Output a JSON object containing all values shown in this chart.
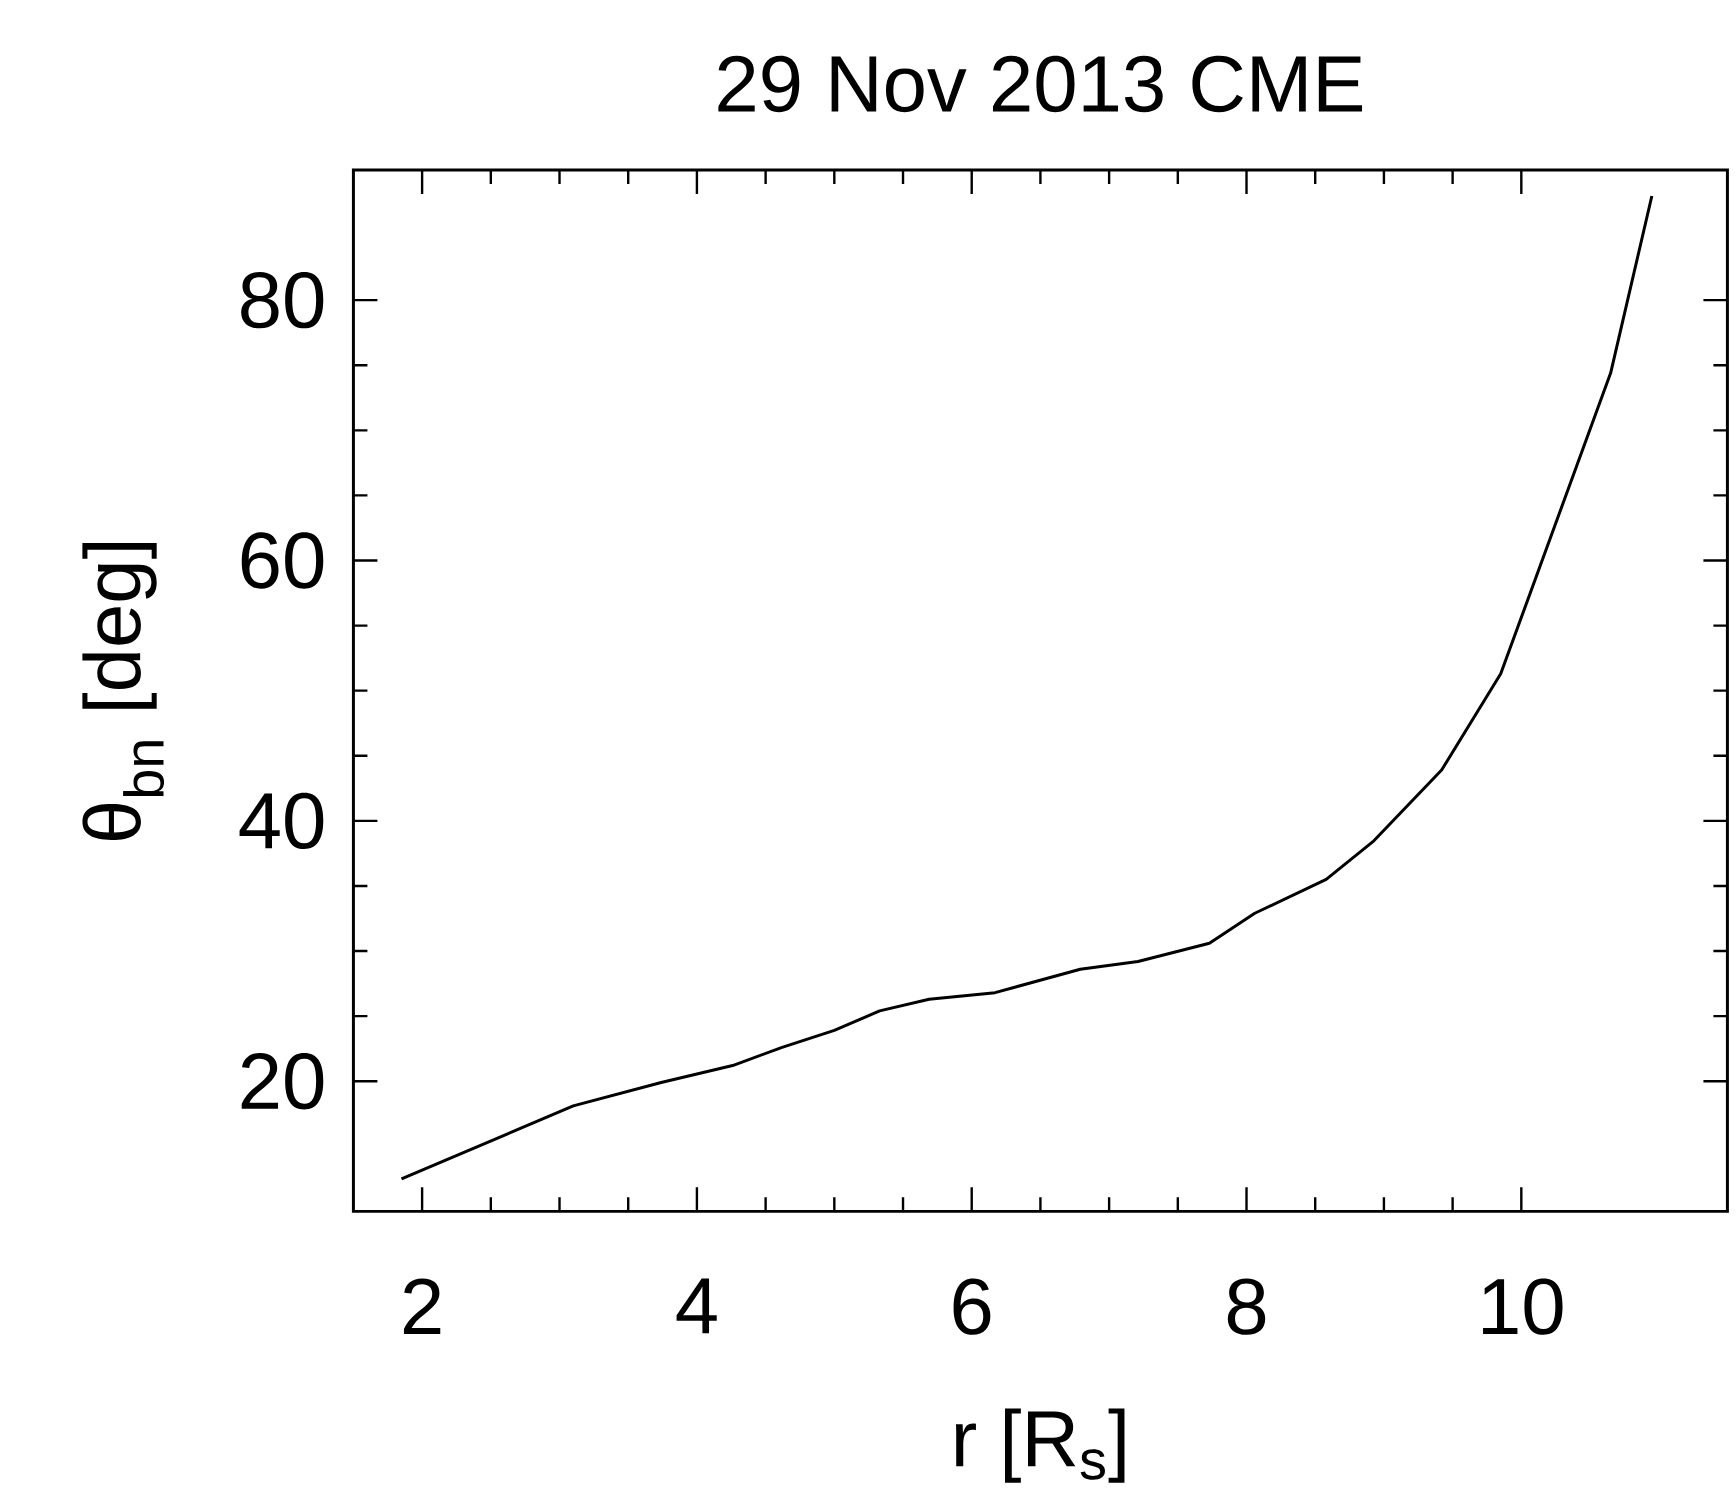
{
  "chart_data": {
    "type": "line",
    "title": "29 Nov 2013 CME",
    "xlabel": "r [R$_{s}$]",
    "ylabel": "θ$_{bn}$ [deg]",
    "x": [
      1.85,
      3.1,
      3.74,
      4.26,
      4.62,
      5.0,
      5.33,
      5.69,
      6.17,
      6.79,
      7.21,
      7.73,
      8.06,
      8.58,
      8.92,
      9.42,
      9.85,
      10.65,
      10.95
    ],
    "series": [
      {
        "color": "#000000",
        "values": [
          12.5,
          18.1,
          19.9,
          21.2,
          22.6,
          23.9,
          25.4,
          26.3,
          26.8,
          28.6,
          29.2,
          30.6,
          32.9,
          35.5,
          38.4,
          43.9,
          51.3,
          74.4,
          88.0
        ]
      }
    ],
    "xlim": [
      1.5,
      11.5
    ],
    "ylim": [
      10,
      90
    ],
    "xticks": [
      2,
      4,
      6,
      8,
      10
    ],
    "yticks": [
      20,
      40,
      60,
      80
    ],
    "marker": "none",
    "line_style": "solid"
  }
}
